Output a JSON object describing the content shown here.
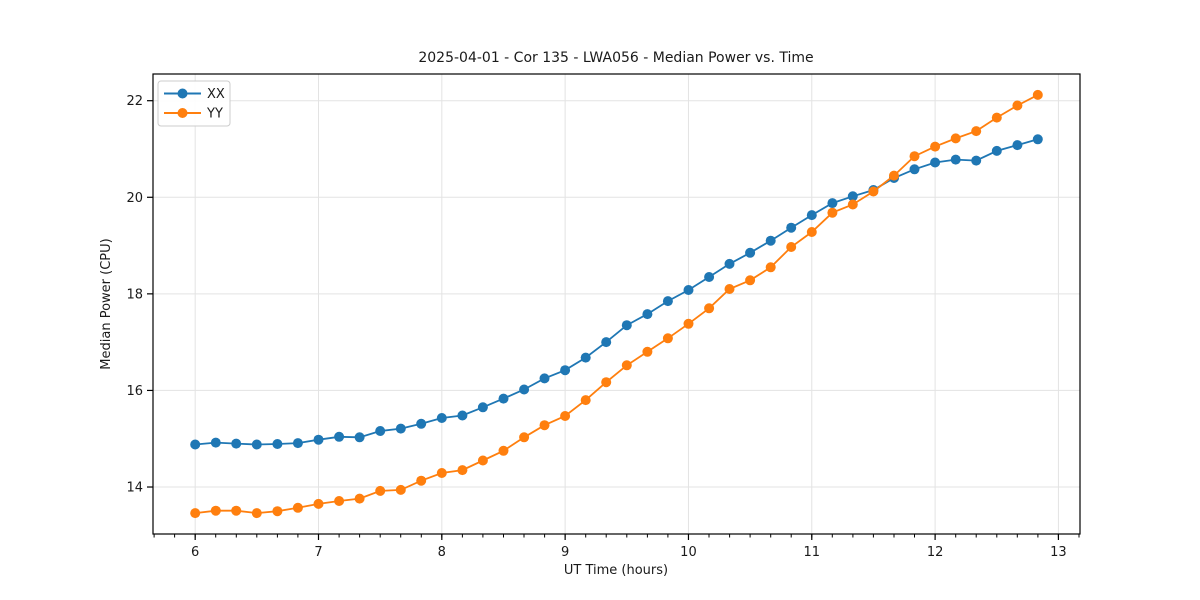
{
  "figure": {
    "background": "#ffffff"
  },
  "chart_data": {
    "type": "line",
    "title": "2025-04-01 - Cor 135 - LWA056 - Median Power vs. Time",
    "xlabel": "UT Time (hours)",
    "ylabel": "Median Power (CPU)",
    "xlim": [
      5.658,
      13.175
    ],
    "ylim": [
      13.027,
      22.553
    ],
    "xticks": [
      6,
      7,
      8,
      9,
      10,
      11,
      12,
      13
    ],
    "yticks": [
      14,
      16,
      18,
      20,
      22
    ],
    "x_minor_tick_step": 0.166667,
    "grid": true,
    "legend": {
      "position": "upper-left"
    },
    "colors": {
      "grid": "#e3e3e3",
      "spine": "#000000",
      "text": "#1a1a1a",
      "series_xx": "#1f77b4",
      "series_yy": "#ff7f0e"
    },
    "x": [
      6.0,
      6.167,
      6.333,
      6.5,
      6.667,
      6.833,
      7.0,
      7.167,
      7.333,
      7.5,
      7.667,
      7.833,
      8.0,
      8.167,
      8.333,
      8.5,
      8.667,
      8.833,
      9.0,
      9.167,
      9.333,
      9.5,
      9.667,
      9.833,
      10.0,
      10.167,
      10.333,
      10.5,
      10.667,
      10.833,
      11.0,
      11.167,
      11.333,
      11.5,
      11.667,
      11.833,
      12.0,
      12.167,
      12.333,
      12.5,
      12.667,
      12.833
    ],
    "series": [
      {
        "name": "XX",
        "color": "#1f77b4",
        "marker": "circle",
        "values": [
          14.88,
          14.92,
          14.9,
          14.88,
          14.89,
          14.91,
          14.98,
          15.04,
          15.03,
          15.16,
          15.21,
          15.31,
          15.43,
          15.48,
          15.65,
          15.83,
          16.02,
          16.25,
          16.42,
          16.68,
          17.0,
          17.35,
          17.58,
          17.85,
          18.08,
          18.35,
          18.62,
          18.85,
          19.1,
          19.37,
          19.63,
          19.88,
          20.02,
          20.15,
          20.4,
          20.58,
          20.72,
          20.78,
          20.76,
          20.96,
          21.08,
          21.2
        ]
      },
      {
        "name": "YY",
        "color": "#ff7f0e",
        "marker": "circle",
        "values": [
          13.46,
          13.51,
          13.51,
          13.46,
          13.5,
          13.57,
          13.65,
          13.71,
          13.76,
          13.92,
          13.94,
          14.13,
          14.29,
          14.35,
          14.55,
          14.75,
          15.03,
          15.28,
          15.47,
          15.8,
          16.17,
          16.52,
          16.8,
          17.08,
          17.38,
          17.7,
          18.1,
          18.28,
          18.55,
          18.97,
          19.28,
          19.68,
          19.85,
          20.12,
          20.45,
          20.85,
          21.05,
          21.22,
          21.37,
          21.65,
          21.9,
          22.12
        ]
      }
    ]
  }
}
